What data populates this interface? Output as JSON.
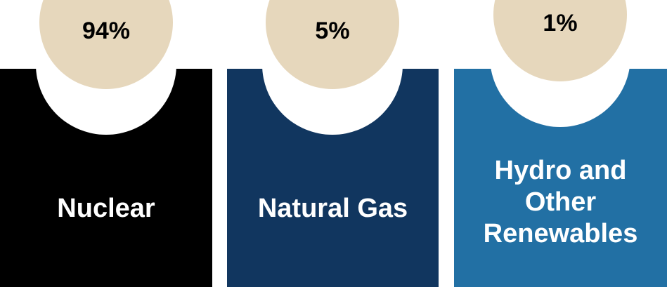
{
  "colors": {
    "card_nuclear": "#000000",
    "card_natural_gas": "#11365f",
    "card_hydro": "#2270a4",
    "badge": "#e6d7bc",
    "background": "#ffffff"
  },
  "items": [
    {
      "percent": "94%",
      "label": "Nuclear"
    },
    {
      "percent": "5%",
      "label": "Natural Gas"
    },
    {
      "percent": "1%",
      "label": "Hydro and\nOther\nRenewables"
    }
  ]
}
